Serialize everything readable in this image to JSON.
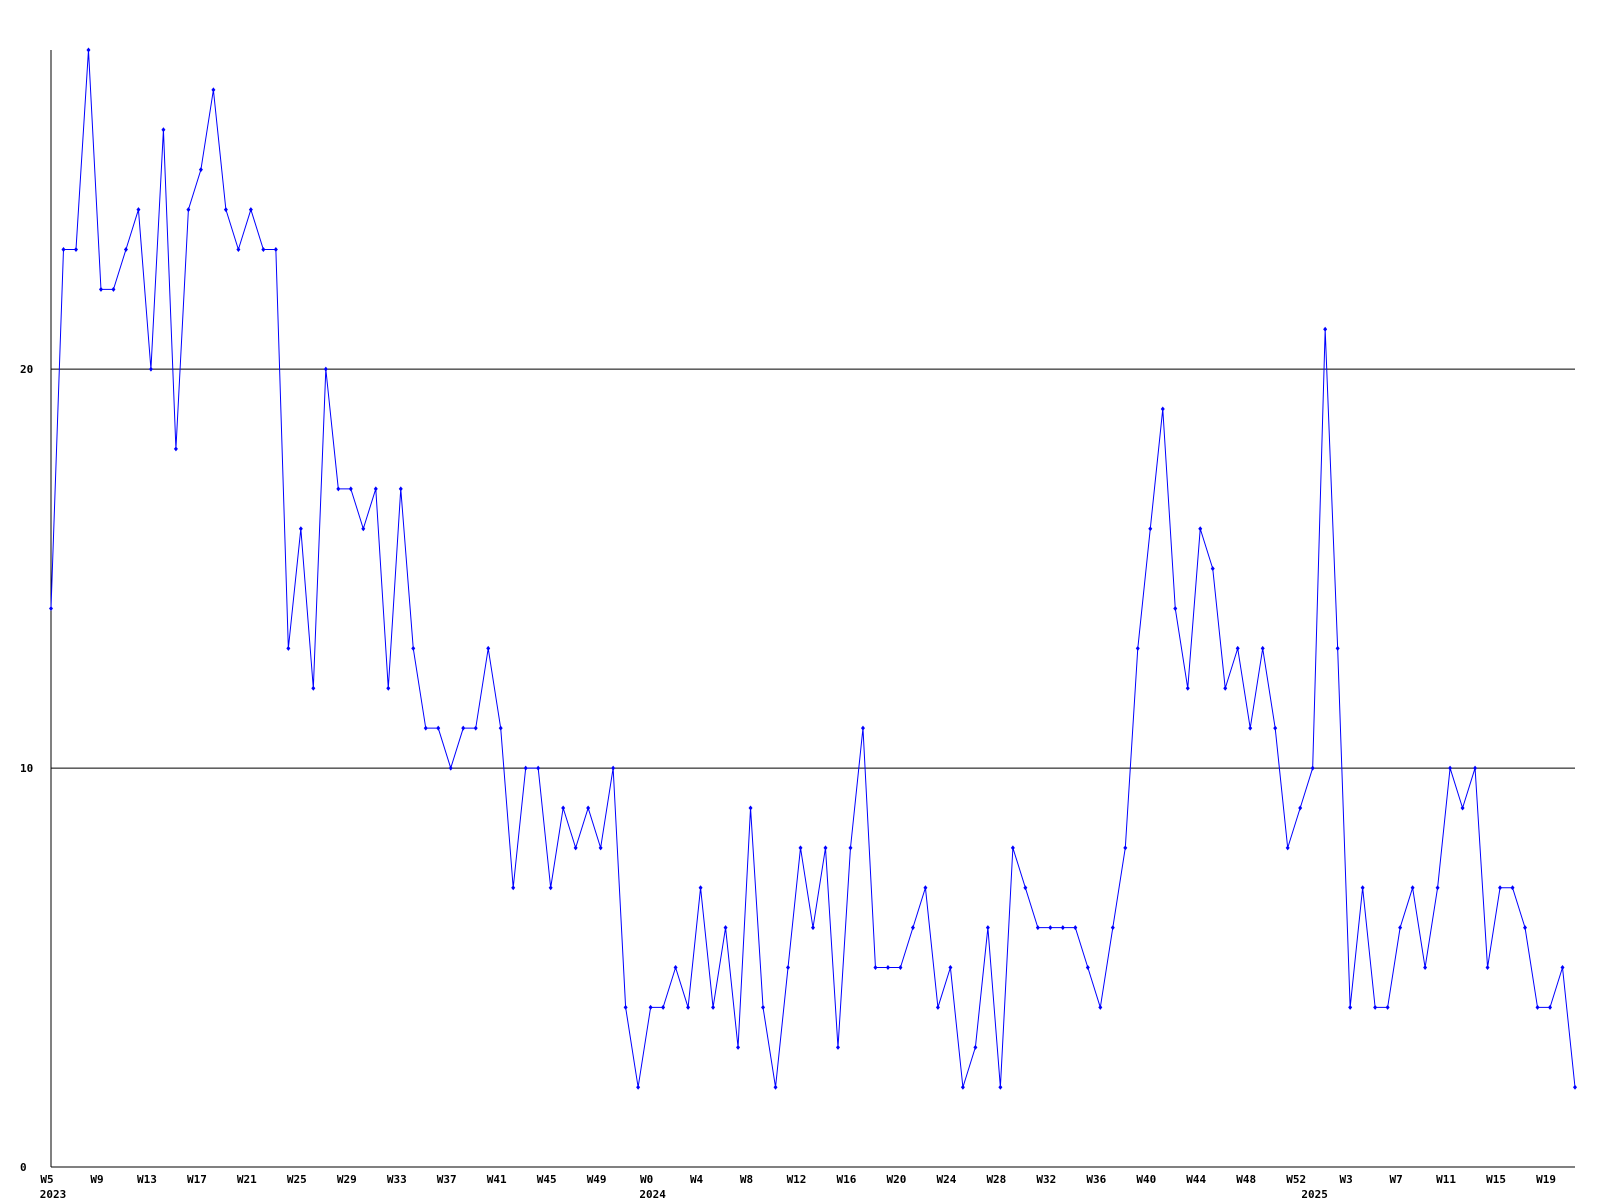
{
  "chart_data": {
    "type": "line",
    "categories": [
      "W5",
      null,
      null,
      null,
      "W9",
      null,
      null,
      null,
      "W13",
      null,
      null,
      null,
      "W17",
      null,
      null,
      null,
      "W21",
      null,
      null,
      null,
      "W25",
      null,
      null,
      null,
      "W29",
      null,
      null,
      null,
      "W33",
      null,
      null,
      null,
      "W37",
      null,
      null,
      null,
      "W41",
      null,
      null,
      null,
      "W45",
      null,
      null,
      null,
      "W49",
      null,
      null,
      null,
      "W0",
      null,
      null,
      null,
      "W4",
      null,
      null,
      null,
      "W8",
      null,
      null,
      null,
      "W12",
      null,
      null,
      null,
      "W16",
      null,
      null,
      null,
      "W20",
      null,
      null,
      null,
      "W24",
      null,
      null,
      null,
      "W28",
      null,
      null,
      null,
      "W32",
      null,
      null,
      null,
      "W36",
      null,
      null,
      null,
      "W40",
      null,
      null,
      null,
      "W44",
      null,
      null,
      null,
      "W48",
      null,
      null,
      null,
      "W52",
      null,
      null,
      null,
      "W3",
      null,
      null,
      null,
      "W7",
      null,
      null,
      null,
      "W11",
      null,
      null,
      null,
      "W15",
      null,
      null,
      null,
      "W19",
      null,
      null
    ],
    "years": [
      "2023",
      null,
      null,
      null,
      null,
      null,
      null,
      null,
      null,
      null,
      null,
      null,
      null,
      null,
      null,
      null,
      null,
      null,
      null,
      null,
      null,
      null,
      null,
      null,
      null,
      null,
      null,
      null,
      null,
      null,
      null,
      null,
      null,
      null,
      null,
      null,
      null,
      null,
      null,
      null,
      null,
      null,
      null,
      null,
      null,
      null,
      null,
      null,
      "2024",
      null,
      null,
      null,
      null,
      null,
      null,
      null,
      null,
      null,
      null,
      null,
      null,
      null,
      null,
      null,
      null,
      null,
      null,
      null,
      null,
      null,
      null,
      null,
      null,
      null,
      null,
      null,
      null,
      null,
      null,
      null,
      null,
      null,
      null,
      null,
      null,
      null,
      null,
      null,
      null,
      null,
      null,
      null,
      null,
      null,
      null,
      null,
      null,
      null,
      null,
      null,
      null,
      "2025",
      null,
      null,
      null,
      null,
      null,
      null,
      null,
      null,
      null,
      null,
      null,
      null,
      null,
      null,
      null,
      null,
      null,
      null,
      null,
      null,
      null
    ],
    "values": [
      14,
      23,
      23,
      28,
      22,
      22,
      23,
      24,
      20,
      26,
      18,
      24,
      25,
      27,
      24,
      23,
      24,
      23,
      23,
      13,
      16,
      12,
      20,
      17,
      17,
      16,
      17,
      12,
      17,
      13,
      11,
      11,
      10,
      11,
      11,
      13,
      11,
      7,
      10,
      10,
      7,
      9,
      8,
      9,
      8,
      10,
      4,
      2,
      4,
      4,
      5,
      4,
      7,
      4,
      6,
      3,
      9,
      4,
      2,
      5,
      8,
      6,
      8,
      3,
      8,
      11,
      5,
      5,
      5,
      6,
      7,
      4,
      5,
      2,
      3,
      6,
      2,
      8,
      7,
      6,
      6,
      6,
      6,
      5,
      4,
      6,
      8,
      13,
      16,
      19,
      14,
      12,
      16,
      15,
      12,
      13,
      11,
      13,
      11,
      8,
      9,
      10,
      21,
      13,
      4,
      7,
      4,
      4,
      6,
      7,
      5,
      7,
      10,
      9,
      10,
      5,
      7,
      7,
      6,
      4,
      4,
      5,
      2
    ],
    "color": "#0000ff",
    "ylim": [
      0,
      28
    ],
    "yticks": [
      0,
      10,
      20
    ],
    "grid": true
  }
}
